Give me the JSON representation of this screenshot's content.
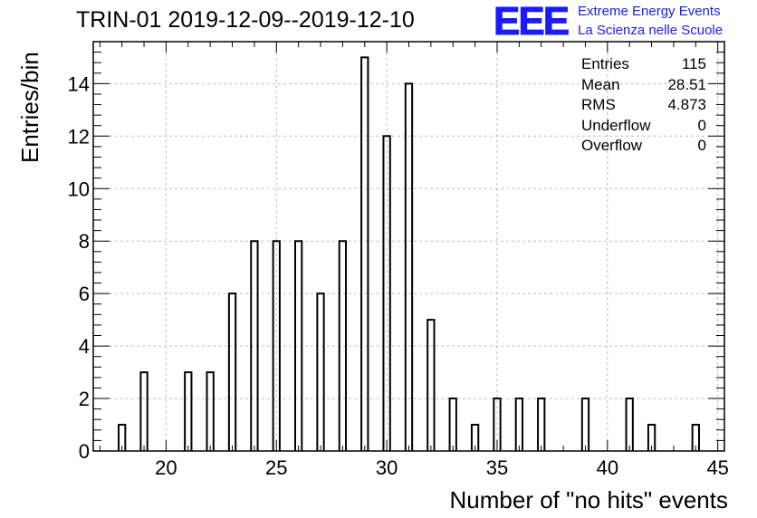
{
  "title": "TRIN-01 2019-12-09--2019-12-10",
  "logo": {
    "text": "EEE",
    "line1": "Extreme Energy Events",
    "line2": "La Scienza nelle Scuole",
    "color": "#1a1aff"
  },
  "stats": [
    {
      "label": "Entries",
      "value": "115"
    },
    {
      "label": "Mean",
      "value": "28.51"
    },
    {
      "label": "RMS",
      "value": "4.873"
    },
    {
      "label": "Underflow",
      "value": "0"
    },
    {
      "label": "Overflow",
      "value": "0"
    }
  ],
  "chart_data": {
    "type": "bar",
    "title": "TRIN-01 2019-12-09--2019-12-10",
    "xlabel": "Number of \"no hits\" events",
    "ylabel": "Entries/bin",
    "xlim": [
      16.7,
      45.3
    ],
    "ylim": [
      0,
      15.6
    ],
    "bin_width": 0.3,
    "x_ticks": [
      20,
      25,
      30,
      35,
      40,
      45
    ],
    "y_ticks": [
      0,
      2,
      4,
      6,
      8,
      10,
      12,
      14
    ],
    "grid": true,
    "line_color": "#000000",
    "bins": [
      {
        "x": 18,
        "count": 1
      },
      {
        "x": 19,
        "count": 3
      },
      {
        "x": 21,
        "count": 3
      },
      {
        "x": 22,
        "count": 3
      },
      {
        "x": 23,
        "count": 6
      },
      {
        "x": 24,
        "count": 8
      },
      {
        "x": 25,
        "count": 8
      },
      {
        "x": 26,
        "count": 8
      },
      {
        "x": 27,
        "count": 6
      },
      {
        "x": 28,
        "count": 8
      },
      {
        "x": 29,
        "count": 15
      },
      {
        "x": 30,
        "count": 12
      },
      {
        "x": 31,
        "count": 14
      },
      {
        "x": 32,
        "count": 5
      },
      {
        "x": 33,
        "count": 2
      },
      {
        "x": 34,
        "count": 1
      },
      {
        "x": 35,
        "count": 2
      },
      {
        "x": 36,
        "count": 2
      },
      {
        "x": 37,
        "count": 2
      },
      {
        "x": 39,
        "count": 2
      },
      {
        "x": 41,
        "count": 2
      },
      {
        "x": 42,
        "count": 1
      },
      {
        "x": 44,
        "count": 1
      }
    ]
  }
}
